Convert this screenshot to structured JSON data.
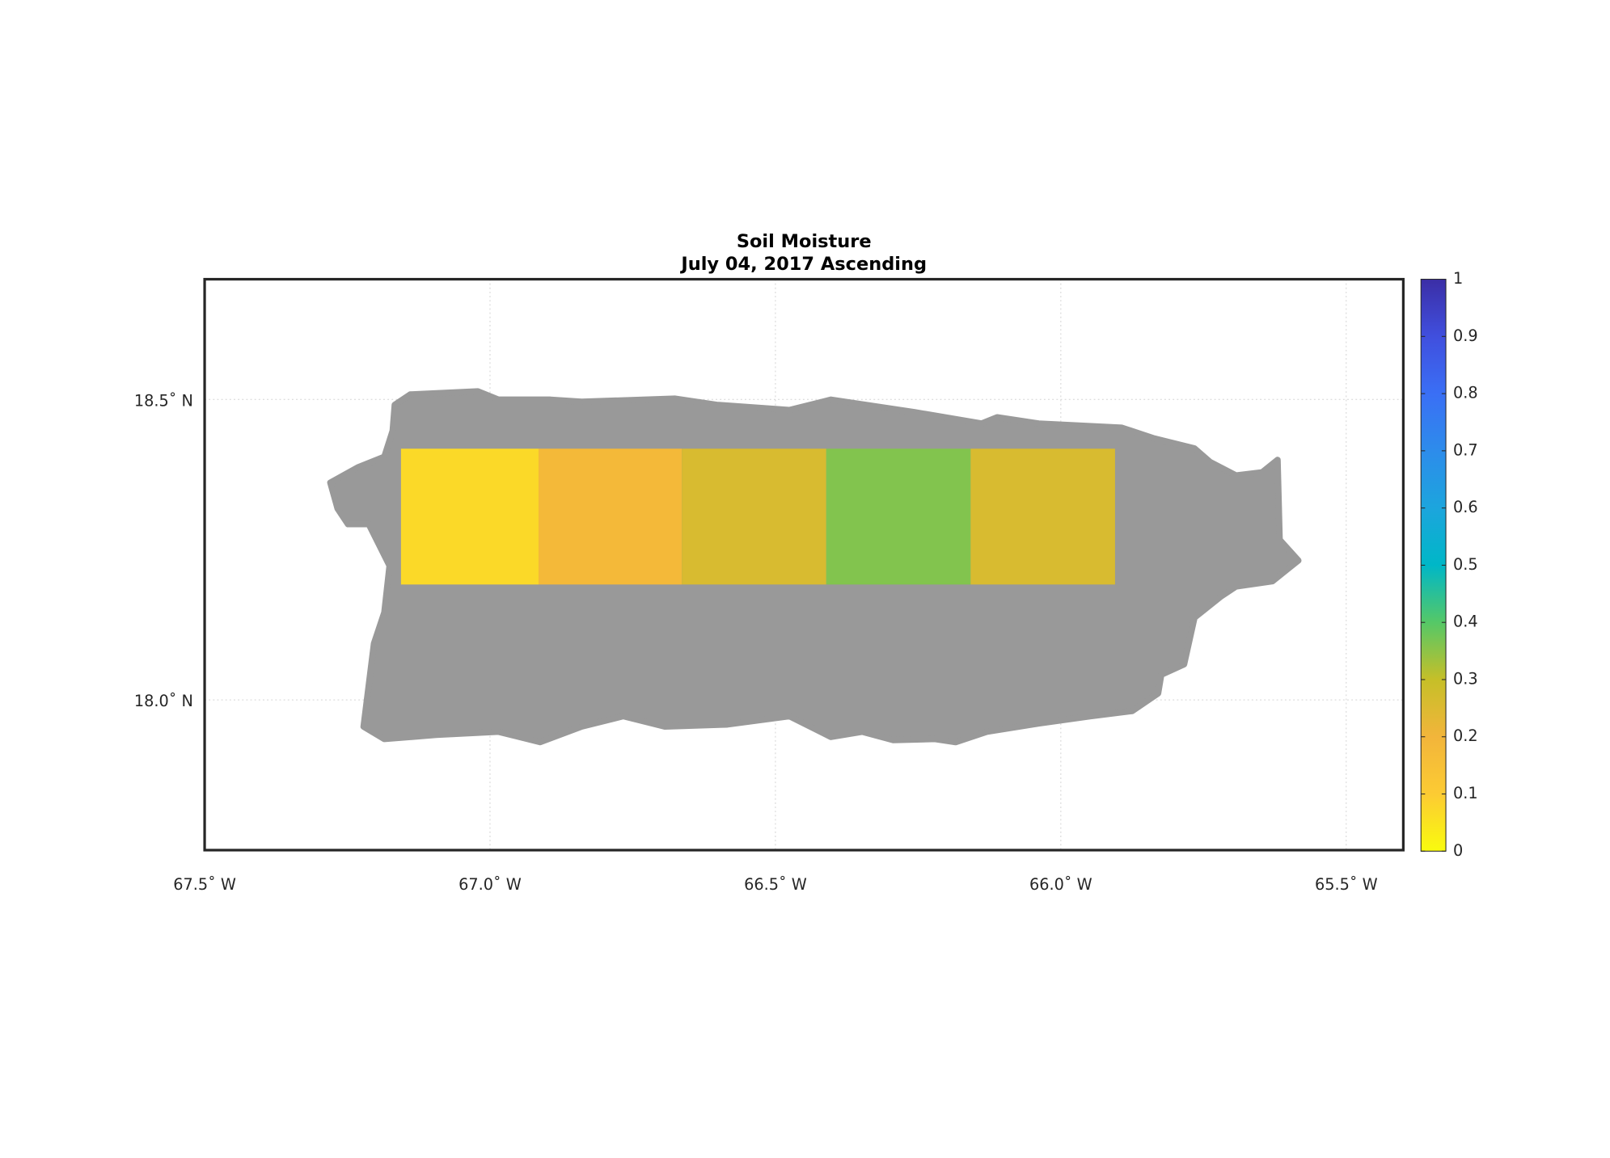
{
  "chart_data": {
    "type": "gridmap",
    "title": "Soil Moisture",
    "subtitle": "July 04, 2017 Ascending",
    "xlim": [
      -67.5,
      -65.4
    ],
    "ylim": [
      17.75,
      18.7
    ],
    "xticks": [
      {
        "value": -67.5,
        "label": "67.5˚ W"
      },
      {
        "value": -67.0,
        "label": "67.0˚ W"
      },
      {
        "value": -66.5,
        "label": "66.5˚ W"
      },
      {
        "value": -66.0,
        "label": "66.0˚ W"
      },
      {
        "value": -65.5,
        "label": "65.5˚ W"
      }
    ],
    "yticks": [
      {
        "value": 18.5,
        "label": "18.5˚ N"
      },
      {
        "value": 18.0,
        "label": "18.0˚ N"
      }
    ],
    "grid": true,
    "lon_edges": [
      -67.156,
      -66.915,
      -66.664,
      -66.411,
      -66.158,
      -65.905
    ],
    "lat_edges": [
      18.192,
      18.418
    ],
    "values": [
      0.07,
      0.18,
      0.26,
      0.36,
      0.26
    ],
    "clim": [
      0,
      1
    ],
    "cticks": [
      0,
      0.1,
      0.2,
      0.3,
      0.4,
      0.5,
      0.6,
      0.7,
      0.8,
      0.9,
      1
    ],
    "colormap": [
      "#f9fb0e",
      "#fccb33",
      "#f2b53b",
      "#c6bf28",
      "#55c867",
      "#00b7c7",
      "#1ca5dd",
      "#2d8ceb",
      "#3a6ff5",
      "#404fde",
      "#3b2ea6"
    ]
  }
}
